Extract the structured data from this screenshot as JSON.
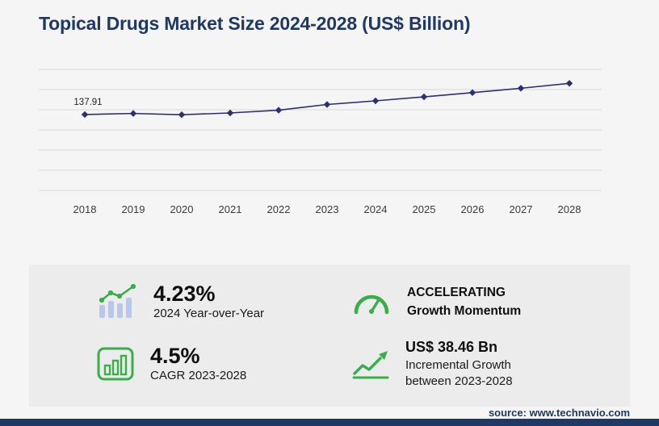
{
  "title": "Topical Drugs Market Size 2024-2028 (US$ Billion)",
  "source": "source: www.technavio.com",
  "colors": {
    "navy": "#1f3864",
    "line": "#2a3073",
    "green": "#3aae4b",
    "light_blue": "#b9c8ea",
    "grid": "#d9d9d9",
    "panel_bg": "#ececec",
    "page_bg": "#f5f5f5"
  },
  "chart_data": {
    "type": "line",
    "title": "Topical Drugs Market Size 2024-2028 (US$ Billion)",
    "x": [
      "2018",
      "2019",
      "2020",
      "2021",
      "2022",
      "2023",
      "2024",
      "2025",
      "2026",
      "2027",
      "2028"
    ],
    "values": [
      137.91,
      139.9,
      137.6,
      140.8,
      145.8,
      156.18,
      162.79,
      170.1,
      177.7,
      185.7,
      194.64
    ],
    "labeled_points": [
      {
        "x": "2018",
        "label": "137.91"
      }
    ],
    "xlabel": "",
    "ylabel": "",
    "ylim": [
      0,
      220
    ],
    "grid": true,
    "gridline_count": 7,
    "marker": "diamond",
    "legend": "none"
  },
  "stats": {
    "yoy": {
      "value": "4.23%",
      "label": "2024 Year-over-Year"
    },
    "momentum": {
      "line1": "ACCELERATING",
      "line2": "Growth Momentum"
    },
    "cagr": {
      "value": "4.5%",
      "label": "CAGR 2023-2028"
    },
    "incremental": {
      "value": "US$ 38.46 Bn",
      "label_line1": "Incremental Growth",
      "label_line2": "between 2023-2028"
    }
  }
}
